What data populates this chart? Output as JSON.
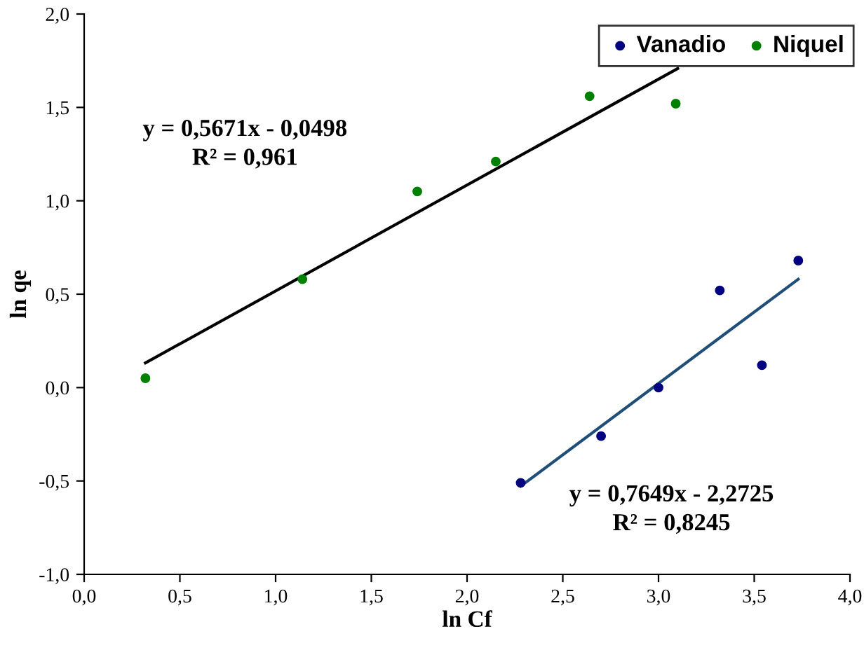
{
  "chart_data": {
    "type": "scatter",
    "xlabel": "ln Cf",
    "ylabel": "ln qe",
    "xlim": [
      0,
      4
    ],
    "ylim": [
      -1,
      2
    ],
    "xticks": [
      {
        "value": 0,
        "label": "0,0"
      },
      {
        "value": 0.5,
        "label": "0,5"
      },
      {
        "value": 1,
        "label": "1,0"
      },
      {
        "value": 1.5,
        "label": "1,5"
      },
      {
        "value": 2,
        "label": "2,0"
      },
      {
        "value": 2.5,
        "label": "2,5"
      },
      {
        "value": 3,
        "label": "3,0"
      },
      {
        "value": 3.5,
        "label": "3,5"
      },
      {
        "value": 4,
        "label": "4,0"
      }
    ],
    "yticks": [
      {
        "value": -1,
        "label": "-1,0"
      },
      {
        "value": -0.5,
        "label": "-0,5"
      },
      {
        "value": 0,
        "label": "0,0"
      },
      {
        "value": 0.5,
        "label": "0,5"
      },
      {
        "value": 1,
        "label": "1,0"
      },
      {
        "value": 1.5,
        "label": "1,5"
      },
      {
        "value": 2,
        "label": "2,0"
      }
    ],
    "grid": false,
    "legend": "top right",
    "series": [
      {
        "name": "Vanadio",
        "color": "#000080",
        "marker": "circle",
        "x": [
          2.28,
          2.7,
          3.0,
          3.32,
          3.54,
          3.73
        ],
        "values": [
          -0.51,
          -0.26,
          0.0,
          0.52,
          0.12,
          0.68
        ]
      },
      {
        "name": "Niquel",
        "color": "#008000",
        "marker": "circle",
        "x": [
          0.32,
          1.14,
          1.74,
          2.15,
          2.64,
          3.09
        ],
        "values": [
          0.05,
          0.58,
          1.05,
          1.21,
          1.56,
          1.52
        ]
      },
      {
        "type": "line",
        "color": "#000000",
        "marker": "none",
        "line_style": "solid",
        "x": [
          0.32,
          3.1
        ],
        "values": [
          0.132,
          1.708
        ]
      },
      {
        "type": "line",
        "color": "#1f4e79",
        "marker": "none",
        "line_style": "solid",
        "x": [
          2.28,
          3.73
        ],
        "values": [
          -0.528,
          0.58
        ]
      }
    ],
    "annotations": [
      "y = 0,5671x - 0,0498\nR² = 0,961",
      "y = 0,7649x - 2,2725\nR² = 0,8245"
    ]
  }
}
